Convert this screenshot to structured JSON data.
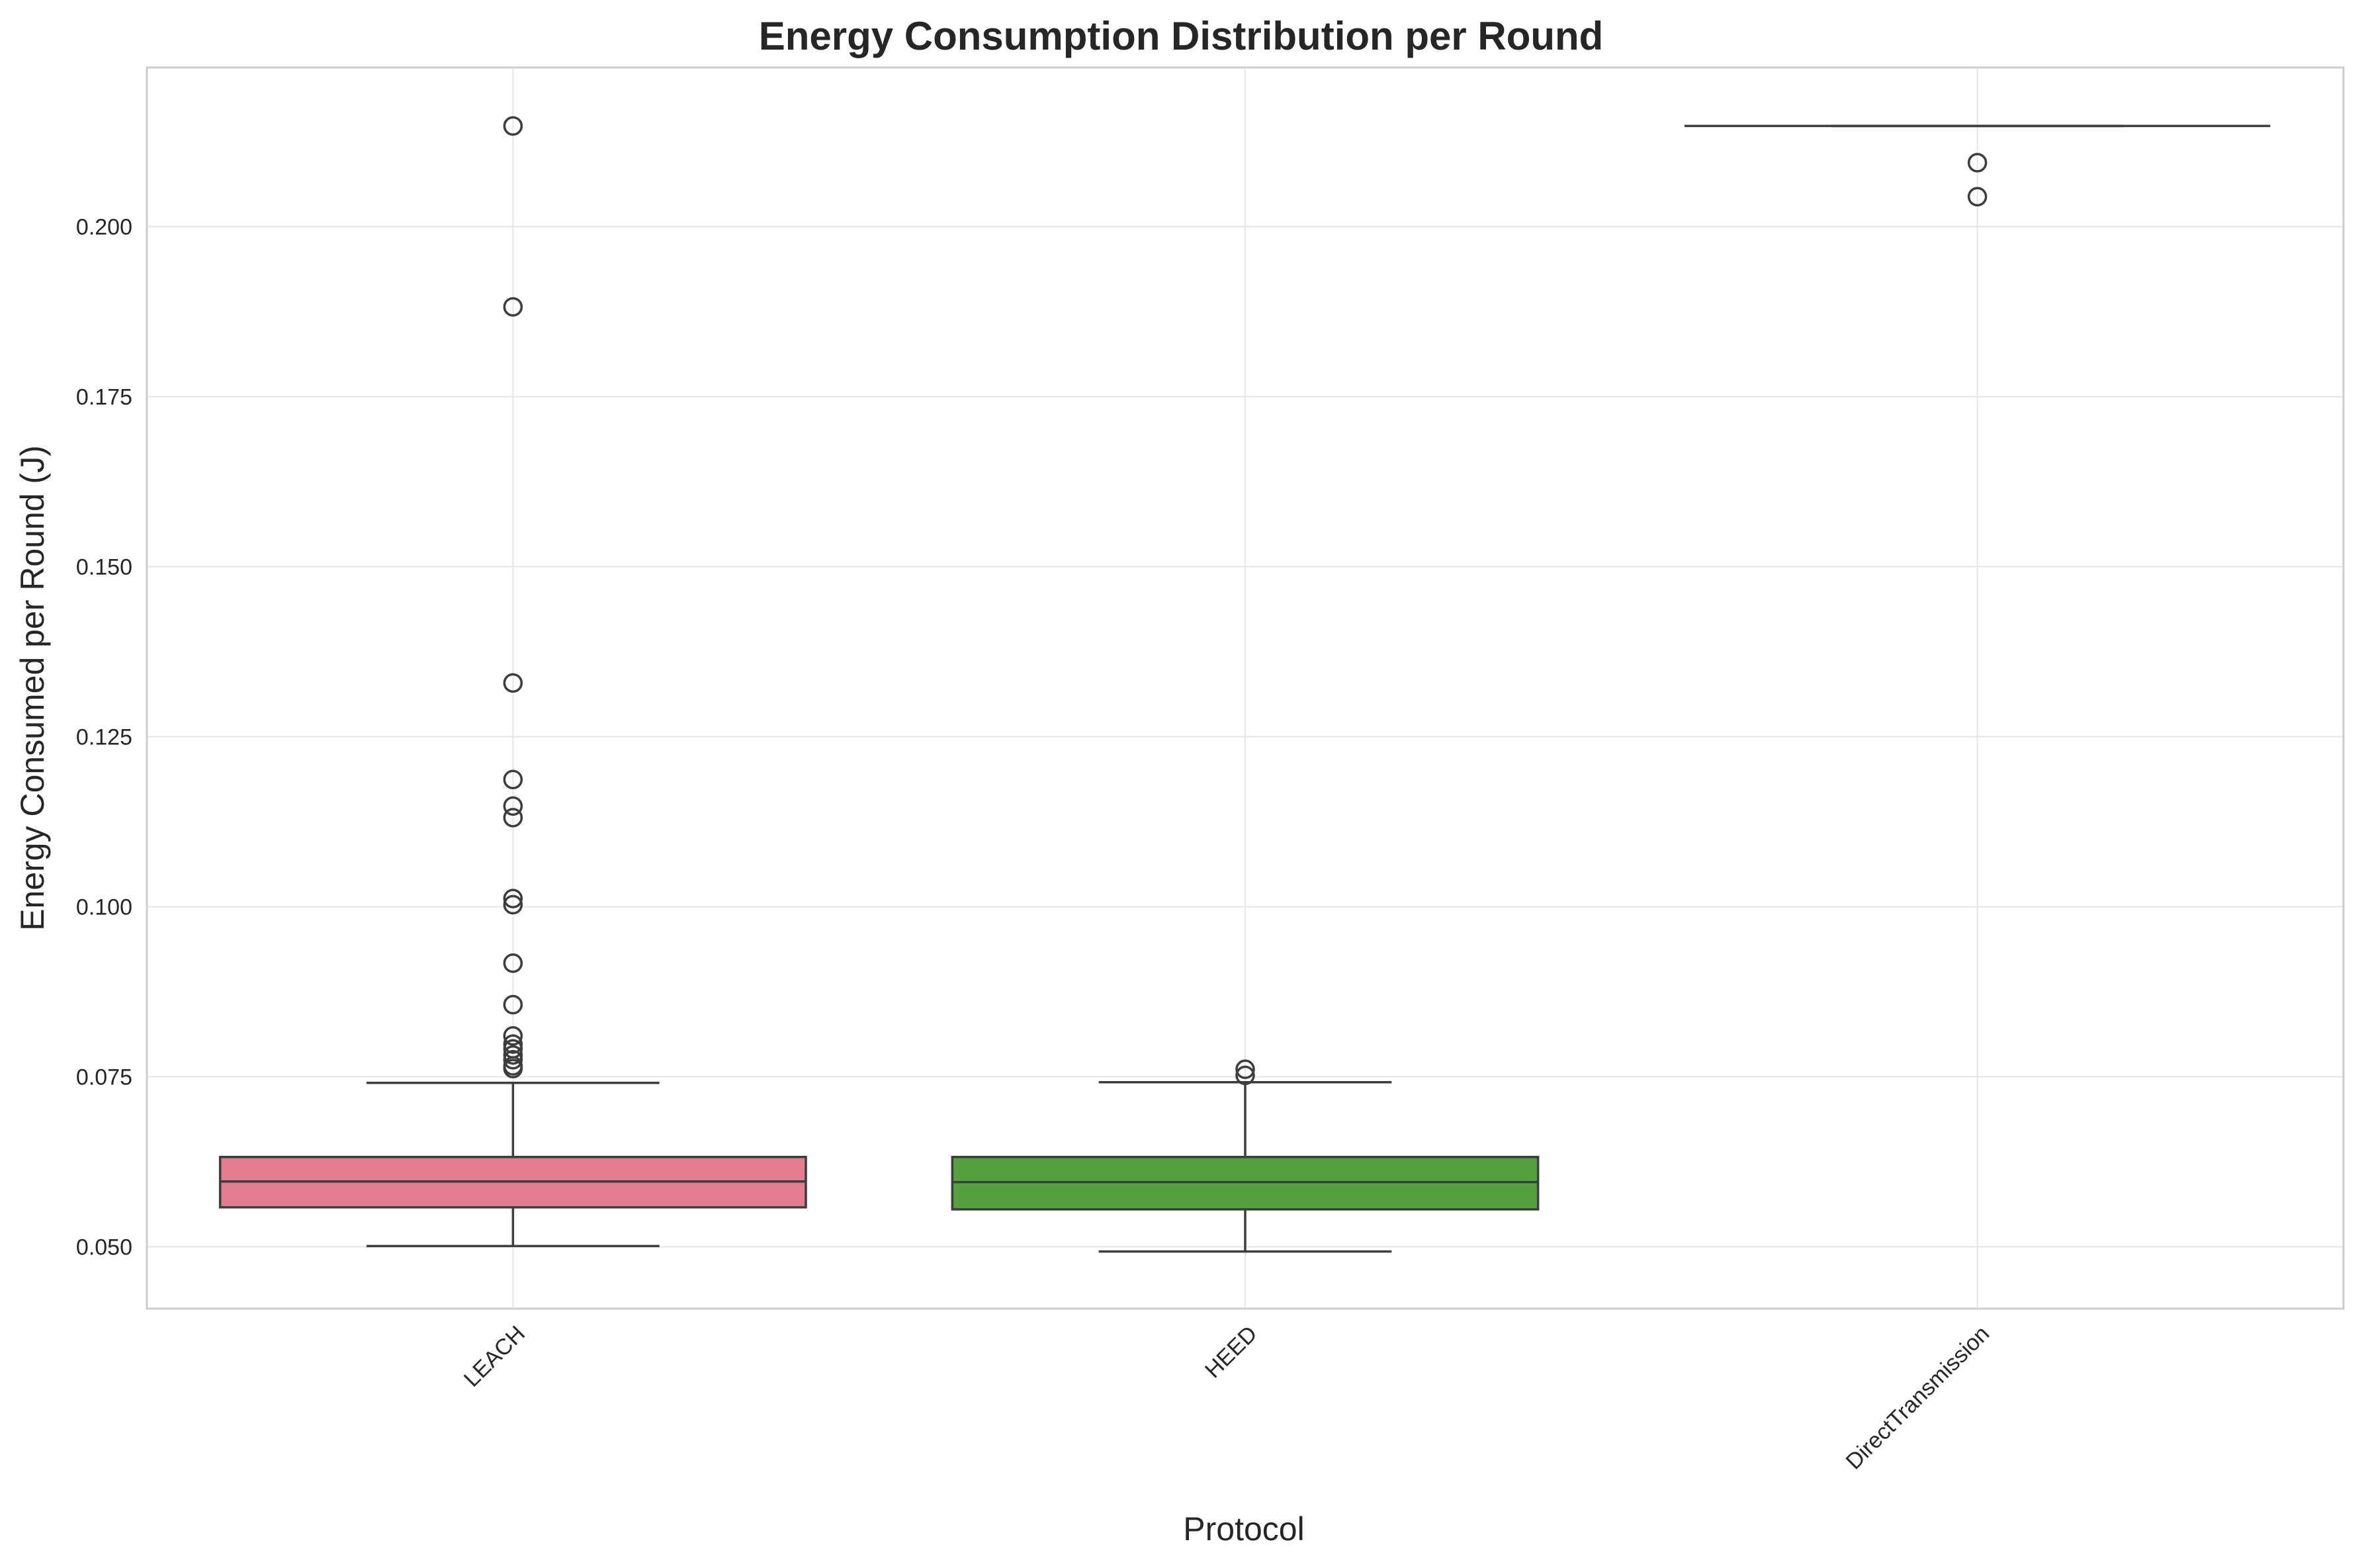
{
  "chart_data": {
    "type": "box",
    "title": "Energy Consumption Distribution per Round",
    "xlabel": "Protocol",
    "ylabel": "Energy Consumed per Round (J)",
    "ylim": [
      0.0409,
      0.2234
    ],
    "yticks": [
      0.05,
      0.075,
      0.1,
      0.125,
      0.15,
      0.175,
      0.2
    ],
    "ytick_labels": [
      "0.050",
      "0.075",
      "0.100",
      "0.125",
      "0.150",
      "0.175",
      "0.200"
    ],
    "grid": true,
    "categories": [
      "LEACH",
      "HEED",
      "DirectTransmission"
    ],
    "series": [
      {
        "category": "LEACH",
        "color": "#e17d8f",
        "whisker_low": 0.0501,
        "q1": 0.0558,
        "median": 0.0596,
        "q3": 0.0632,
        "whisker_high": 0.0741,
        "outliers": [
          0.2148,
          0.1882,
          0.1329,
          0.1187,
          0.1148,
          0.1131,
          0.1012,
          0.1003,
          0.0917,
          0.0856,
          0.081,
          0.0798,
          0.0791,
          0.0782,
          0.0775,
          0.0766,
          0.0762
        ]
      },
      {
        "category": "HEED",
        "color": "#56a03f",
        "whisker_low": 0.0493,
        "q1": 0.0555,
        "median": 0.0595,
        "q3": 0.0632,
        "whisker_high": 0.0742,
        "outliers": [
          0.0761,
          0.0752
        ]
      },
      {
        "category": "DirectTransmission",
        "color": "#3d7fbf",
        "whisker_low": 0.2148,
        "q1": 0.2148,
        "median": 0.2148,
        "q3": 0.2148,
        "whisker_high": 0.2148,
        "outliers": [
          0.2094,
          0.2044
        ]
      }
    ]
  }
}
